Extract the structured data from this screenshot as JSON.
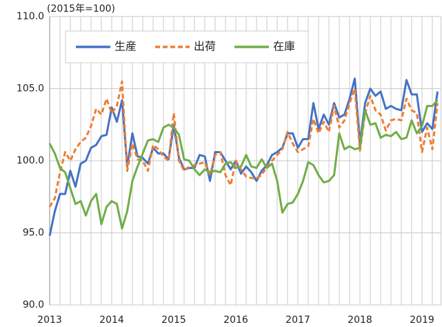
{
  "chart_data": {
    "type": "line",
    "unit_label": "(2015年=100)",
    "categories": [
      "2013",
      null,
      null,
      null,
      null,
      null,
      null,
      null,
      null,
      null,
      null,
      null,
      "2014",
      null,
      null,
      null,
      null,
      null,
      null,
      null,
      null,
      null,
      null,
      null,
      "2015",
      null,
      null,
      null,
      null,
      null,
      null,
      null,
      null,
      null,
      null,
      null,
      "2016",
      null,
      null,
      null,
      null,
      null,
      null,
      null,
      null,
      null,
      null,
      null,
      "2017",
      null,
      null,
      null,
      null,
      null,
      null,
      null,
      null,
      null,
      null,
      null,
      "2018",
      null,
      null,
      null,
      null,
      null,
      null,
      null,
      null,
      null,
      null,
      null,
      "2019",
      null,
      null,
      null
    ],
    "series": [
      {
        "name": "生産",
        "color": "#4472c4",
        "dash": "solid",
        "values": [
          94.8,
          96.5,
          97.7,
          97.7,
          99.3,
          98.2,
          99.8,
          100.0,
          100.9,
          101.1,
          101.7,
          101.8,
          103.7,
          102.7,
          104.2,
          99.6,
          101.9,
          100.3,
          100.2,
          99.8,
          100.9,
          100.5,
          100.5,
          100.1,
          102.5,
          100.2,
          99.4,
          99.5,
          99.5,
          100.4,
          100.3,
          98.6,
          100.6,
          100.6,
          100.0,
          99.4,
          100.0,
          99.1,
          99.6,
          99.2,
          98.6,
          99.3,
          99.7,
          100.4,
          100.6,
          100.9,
          101.9,
          101.9,
          100.9,
          101.5,
          101.5,
          104.0,
          102.2,
          103.2,
          102.5,
          104.0,
          103.0,
          103.2,
          104.3,
          105.7,
          101.2,
          104.0,
          105.0,
          104.5,
          104.8,
          103.6,
          103.8,
          103.6,
          103.5,
          105.6,
          104.6,
          104.6,
          102.0,
          102.6,
          102.2,
          104.8
        ]
      },
      {
        "name": "出荷",
        "color": "#ed7d31",
        "dash": "dashed",
        "values": [
          96.8,
          97.4,
          99.2,
          100.6,
          100.0,
          100.8,
          101.3,
          101.6,
          102.4,
          103.6,
          103.2,
          104.3,
          103.3,
          103.8,
          105.5,
          99.3,
          101.2,
          100.1,
          100.0,
          99.3,
          101.1,
          100.8,
          100.3,
          100.0,
          103.3,
          100.0,
          99.3,
          99.6,
          99.7,
          99.8,
          99.9,
          99.0,
          100.4,
          100.6,
          99.0,
          98.3,
          100.0,
          99.4,
          98.9,
          98.8,
          98.8,
          99.0,
          99.6,
          100.0,
          100.4,
          100.8,
          102.0,
          101.2,
          100.6,
          100.8,
          101.0,
          102.9,
          101.9,
          102.7,
          102.0,
          103.8,
          102.3,
          102.8,
          104.0,
          105.0,
          100.7,
          103.3,
          104.5,
          103.5,
          103.2,
          102.1,
          102.8,
          102.9,
          102.8,
          104.3,
          103.5,
          103.3,
          100.6,
          102.3,
          100.8,
          104.0
        ]
      },
      {
        "name": "在庫",
        "color": "#70ad47",
        "dash": "solid",
        "values": [
          101.2,
          100.5,
          99.5,
          99.2,
          98.1,
          97.0,
          97.2,
          96.2,
          97.2,
          97.7,
          95.6,
          96.8,
          97.2,
          97.0,
          95.3,
          96.5,
          98.6,
          99.6,
          100.5,
          101.4,
          101.5,
          101.3,
          102.3,
          102.5,
          102.3,
          101.8,
          100.1,
          100.0,
          99.4,
          99.0,
          99.4,
          99.2,
          99.3,
          99.2,
          99.8,
          99.9,
          99.5,
          99.6,
          100.4,
          99.6,
          99.5,
          100.1,
          99.5,
          99.8,
          98.6,
          96.4,
          97.0,
          97.1,
          97.7,
          98.6,
          99.9,
          99.7,
          99.0,
          98.5,
          98.6,
          99.0,
          101.9,
          100.8,
          101.0,
          100.8,
          100.9,
          103.5,
          102.5,
          102.6,
          101.6,
          101.8,
          101.7,
          102.0,
          101.5,
          101.6,
          102.8,
          101.9,
          102.4,
          103.8,
          103.8,
          104.2
        ]
      }
    ],
    "ylim": [
      90,
      110
    ],
    "yticks": [
      {
        "value": 90,
        "label": "90.0"
      },
      {
        "value": 95,
        "label": "95.0"
      },
      {
        "value": 100,
        "label": "100.0"
      },
      {
        "value": 105,
        "label": "105.0"
      },
      {
        "value": 110,
        "label": "110.0"
      }
    ],
    "grid": true,
    "legend": "top"
  }
}
